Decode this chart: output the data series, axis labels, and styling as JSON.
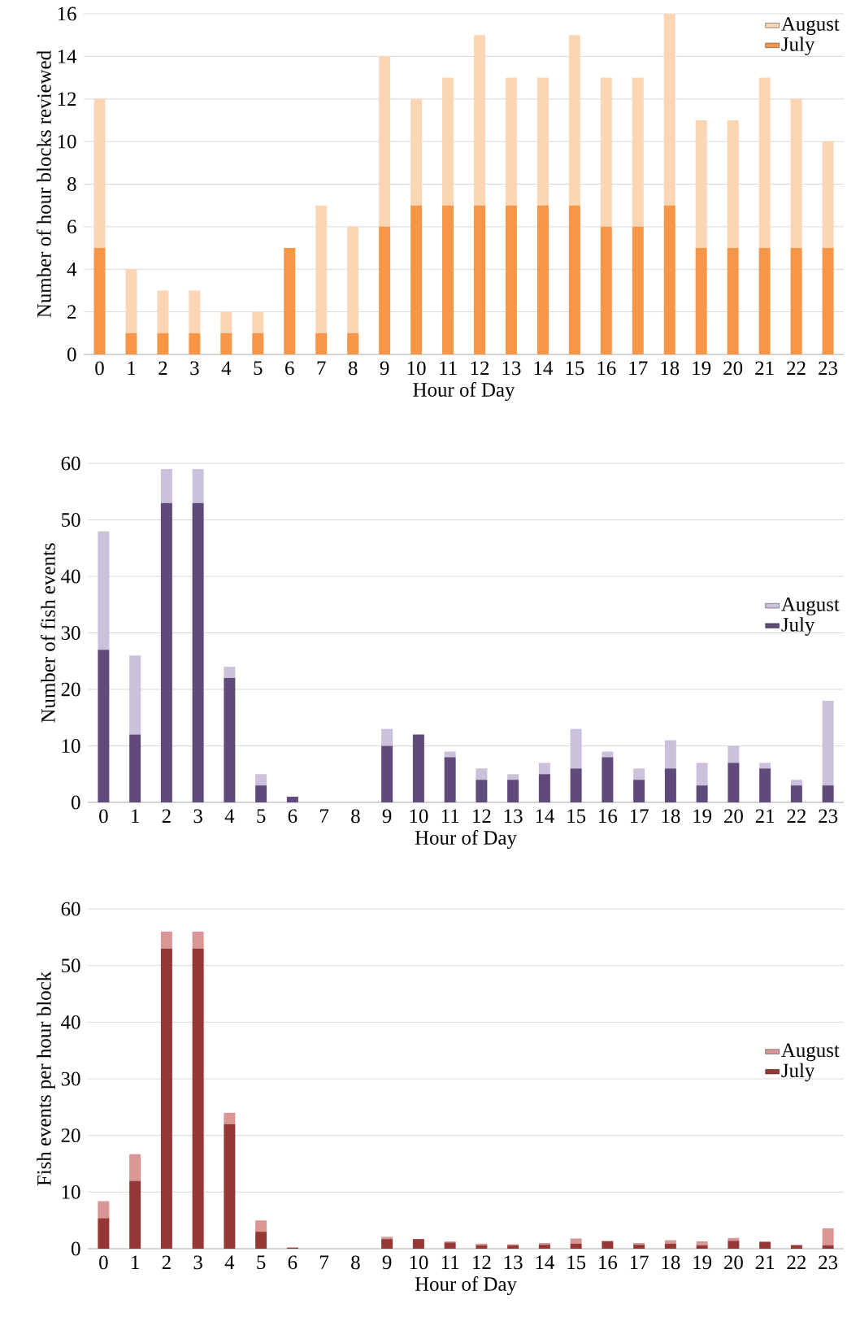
{
  "chart_data": [
    {
      "type": "bar",
      "stacked": true,
      "categories": [
        "0",
        "1",
        "2",
        "3",
        "4",
        "5",
        "6",
        "7",
        "8",
        "9",
        "10",
        "11",
        "12",
        "13",
        "14",
        "15",
        "16",
        "17",
        "18",
        "19",
        "20",
        "21",
        "22",
        "23"
      ],
      "xlabel": "Hour of Day",
      "ylabel": "Number of hour blocks reviewed",
      "ylim": [
        0,
        16
      ],
      "yticks": [
        0,
        2,
        4,
        6,
        8,
        10,
        12,
        14,
        16
      ],
      "grid": "y",
      "legend": "top right",
      "series": [
        {
          "name": "July",
          "color": "#f79646",
          "values": [
            5,
            1,
            1,
            1,
            1,
            1,
            5,
            1,
            1,
            6,
            7,
            7,
            7,
            7,
            7,
            7,
            6,
            6,
            7,
            5,
            5,
            5,
            5,
            5
          ]
        },
        {
          "name": "August",
          "color": "#fcd5b5",
          "values": [
            7,
            3,
            2,
            2,
            1,
            1,
            0,
            6,
            5,
            8,
            5,
            6,
            8,
            6,
            6,
            8,
            7,
            7,
            9,
            6,
            6,
            8,
            7,
            5
          ]
        }
      ]
    },
    {
      "type": "bar",
      "stacked": true,
      "categories": [
        "0",
        "1",
        "2",
        "3",
        "4",
        "5",
        "6",
        "7",
        "8",
        "9",
        "10",
        "11",
        "12",
        "13",
        "14",
        "15",
        "16",
        "17",
        "18",
        "19",
        "20",
        "21",
        "22",
        "23"
      ],
      "xlabel": "Hour of Day",
      "ylabel": "Number of fish events",
      "ylim": [
        0,
        60
      ],
      "yticks": [
        0,
        10,
        20,
        30,
        40,
        50,
        60
      ],
      "grid": "y",
      "legend": "right",
      "series": [
        {
          "name": "July",
          "color": "#604a7b",
          "values": [
            27,
            12,
            53,
            53,
            22,
            3,
            1,
            0,
            0,
            10,
            12,
            8,
            4,
            4,
            5,
            6,
            8,
            4,
            6,
            3,
            7,
            6,
            3,
            3
          ]
        },
        {
          "name": "August",
          "color": "#ccc1da",
          "values": [
            21,
            14,
            6,
            6,
            2,
            2,
            0,
            0,
            0,
            3,
            0,
            1,
            2,
            1,
            2,
            7,
            1,
            2,
            5,
            4,
            3,
            1,
            1,
            15
          ]
        }
      ]
    },
    {
      "type": "bar",
      "stacked": true,
      "categories": [
        "0",
        "1",
        "2",
        "3",
        "4",
        "5",
        "6",
        "7",
        "8",
        "9",
        "10",
        "11",
        "12",
        "13",
        "14",
        "15",
        "16",
        "17",
        "18",
        "19",
        "20",
        "21",
        "22",
        "23"
      ],
      "xlabel": "Hour of Day",
      "ylabel": "Fish events per hour block",
      "ylim": [
        0,
        60
      ],
      "yticks": [
        0,
        10,
        20,
        30,
        40,
        50,
        60
      ],
      "grid": "y",
      "legend": "right",
      "series": [
        {
          "name": "July",
          "color": "#953735",
          "values": [
            5.4,
            12,
            53,
            53,
            22,
            3,
            0.2,
            0,
            0,
            1.7,
            1.7,
            1.1,
            0.6,
            0.6,
            0.7,
            0.9,
            1.3,
            0.7,
            0.9,
            0.6,
            1.4,
            1.2,
            0.6,
            0.6
          ]
        },
        {
          "name": "August",
          "color": "#d99694",
          "values": [
            3,
            4.7,
            3,
            3,
            2,
            2,
            0,
            0,
            0,
            0.4,
            0,
            0.2,
            0.3,
            0.2,
            0.3,
            0.9,
            0.1,
            0.3,
            0.6,
            0.7,
            0.5,
            0.1,
            0.1,
            3
          ]
        }
      ]
    }
  ]
}
